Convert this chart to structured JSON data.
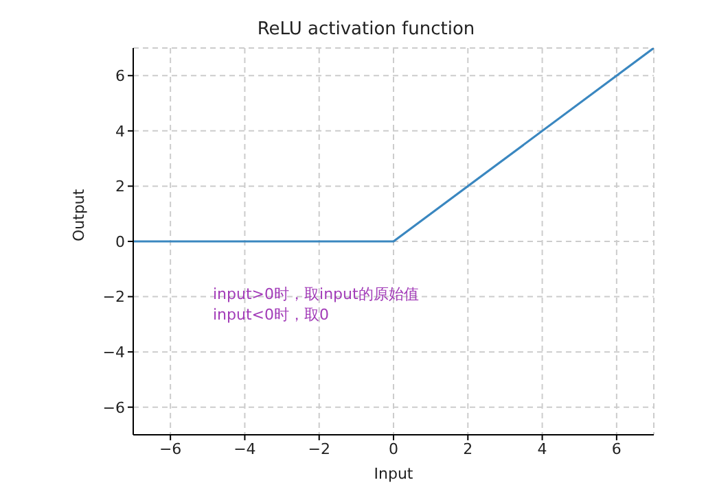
{
  "chart_data": {
    "type": "line",
    "title": "ReLU activation function",
    "xlabel": "Input",
    "ylabel": "Output",
    "x": [
      -7,
      0,
      7
    ],
    "series": [
      {
        "color": "#3a87c0",
        "values": [
          0,
          0,
          7
        ]
      }
    ],
    "xlim": [
      -7,
      7
    ],
    "xticks": [
      -6,
      -4,
      -2,
      0,
      2,
      4,
      6
    ],
    "ylim": [
      -7,
      7
    ],
    "yticks": [
      -6,
      -4,
      -2,
      0,
      2,
      4,
      6
    ],
    "grid": true,
    "line_style": "solid",
    "marker": "none",
    "annotations": [
      "input>0时，取input的原始值\ninput<0时，取0"
    ]
  }
}
